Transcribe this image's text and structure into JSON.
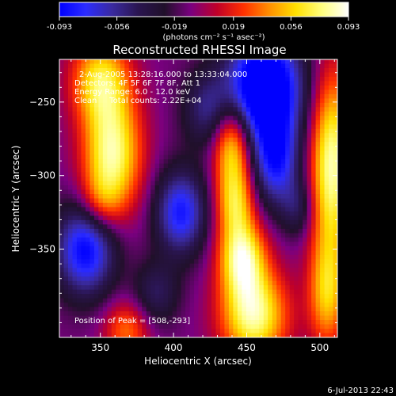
{
  "colorbar": {
    "ticks": [
      "-0.093",
      "-0.056",
      "-0.019",
      "0.019",
      "0.056",
      "0.093"
    ],
    "tick_values": [
      -0.093,
      -0.056,
      -0.019,
      0.019,
      0.056,
      0.093
    ],
    "units": "(photons cm⁻² s⁻¹ asec⁻²)"
  },
  "chart_data": {
    "type": "heatmap",
    "title": "Reconstructed RHESSI Image",
    "xlabel": "Heliocentric X (arcsec)",
    "ylabel": "Heliocentric Y (arcsec)",
    "xlim": [
      322,
      512
    ],
    "ylim": [
      -410,
      -221
    ],
    "x_ticks": [
      350,
      400,
      450,
      500
    ],
    "y_ticks": [
      -250,
      -300,
      -350
    ],
    "zlim": [
      -0.093,
      0.093
    ],
    "annotations": [
      "2-Aug-2005 13:28:16.000 to 13:33:04.000",
      "Detectors: 4F 5F 6F 7F 8F, Att 1",
      "Energy Range: 6.0 - 12.0 keV",
      "Clean     Total counts: 2.22E+04"
    ],
    "peak_label": "Position of Peak = [508,-293]",
    "peak": [
      508,
      -293
    ],
    "sources": [
      {
        "x": 350,
        "y": -235,
        "sx": 14,
        "sy": 20,
        "amp": 0.07
      },
      {
        "x": 358,
        "y": -285,
        "sx": 14,
        "sy": 28,
        "amp": 0.09
      },
      {
        "x": 350,
        "y": -318,
        "sx": 10,
        "sy": 14,
        "amp": 0.03
      },
      {
        "x": 368,
        "y": -405,
        "sx": 11,
        "sy": 14,
        "amp": 0.045
      },
      {
        "x": 440,
        "y": -278,
        "sx": 9,
        "sy": 20,
        "amp": 0.075
      },
      {
        "x": 442,
        "y": -318,
        "sx": 9,
        "sy": 18,
        "amp": 0.065
      },
      {
        "x": 447,
        "y": -356,
        "sx": 11,
        "sy": 18,
        "amp": 0.085
      },
      {
        "x": 455,
        "y": -395,
        "sx": 16,
        "sy": 22,
        "amp": 0.09
      },
      {
        "x": 508,
        "y": -293,
        "sx": 10,
        "sy": 44,
        "amp": 0.093
      },
      {
        "x": 505,
        "y": -380,
        "sx": 9,
        "sy": 26,
        "amp": 0.06
      },
      {
        "x": 462,
        "y": -240,
        "sx": 18,
        "sy": 26,
        "amp": -0.12
      },
      {
        "x": 470,
        "y": -290,
        "sx": 11,
        "sy": 22,
        "amp": -0.07
      },
      {
        "x": 340,
        "y": -350,
        "sx": 14,
        "sy": 22,
        "amp": -0.085
      },
      {
        "x": 405,
        "y": -325,
        "sx": 12,
        "sy": 20,
        "amp": -0.075
      },
      {
        "x": 423,
        "y": -255,
        "sx": 12,
        "sy": 18,
        "amp": -0.04
      },
      {
        "x": 388,
        "y": -380,
        "sx": 11,
        "sy": 15,
        "amp": -0.035
      },
      {
        "x": 485,
        "y": -322,
        "sx": 8,
        "sy": 14,
        "amp": -0.03
      }
    ],
    "background": -0.01,
    "colormap": [
      "#0000ff",
      "#2c2cff",
      "#3a2aa0",
      "#2a1550",
      "#20102a",
      "#7a0080",
      "#c00028",
      "#ff3000",
      "#ff9000",
      "#ffe000",
      "#ffff80",
      "#ffffff"
    ]
  },
  "footer": {
    "date": "6-Jul-2013 22:43"
  }
}
